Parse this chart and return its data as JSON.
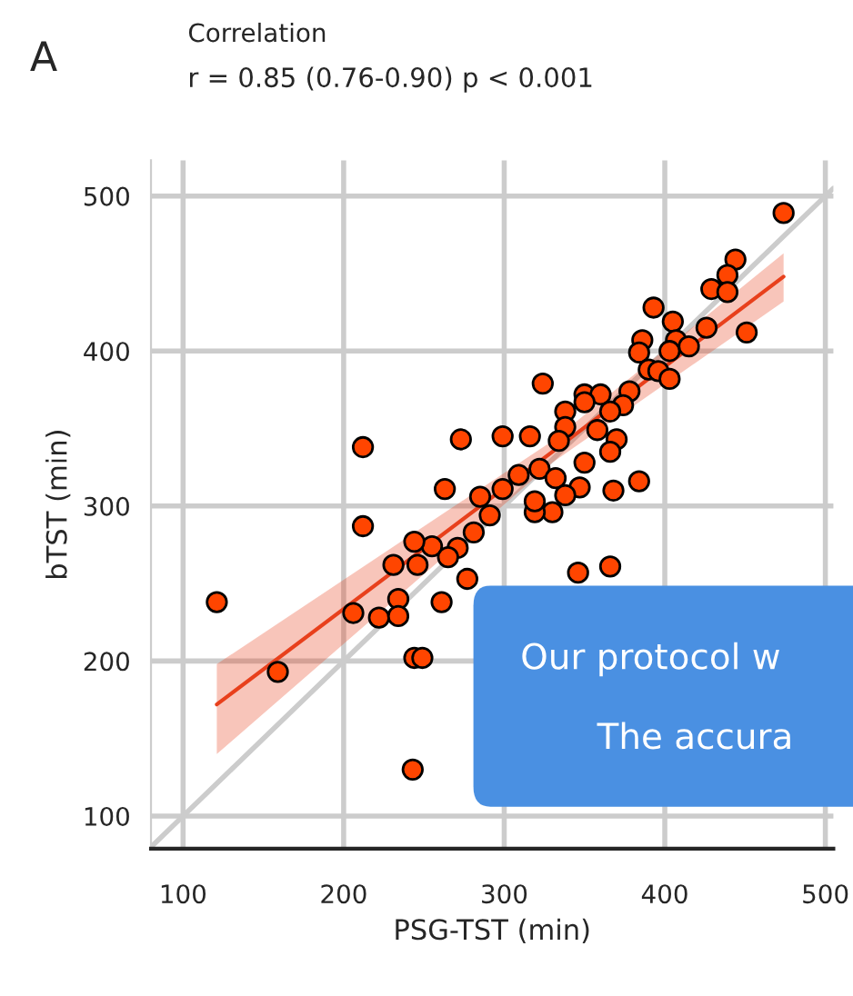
{
  "chart_data": {
    "type": "scatter",
    "title": "Correlation",
    "subtitle": "r = 0.85 (0.76-0.90) p < 0.001",
    "xlabel": "PSG-TST (min)",
    "ylabel": "bTST (min)",
    "annotations": [
      "A",
      "Our protocol w",
      "The accura"
    ],
    "xlim": [
      80,
      505
    ],
    "ylim": [
      79,
      523
    ],
    "xticks": [
      100,
      200,
      300,
      400,
      500
    ],
    "yticks": [
      100,
      200,
      300,
      400,
      500
    ],
    "grid": true,
    "series": [
      {
        "type": "line",
        "color": "#cccccc",
        "x": [
          80,
          505
        ],
        "values": [
          80,
          505
        ]
      },
      {
        "type": "line",
        "color": "#e8401c",
        "x": [
          121,
          330,
          474
        ],
        "values": [
          172,
          335,
          448
        ],
        "lower": [
          140,
          328,
          432
        ],
        "upper": [
          198,
          342,
          463
        ]
      },
      {
        "marker": "circle",
        "color": "#ff4500",
        "x": [
          474,
          444,
          439,
          429,
          439,
          393,
          405,
          426,
          451,
          386,
          407,
          384,
          403,
          415,
          390,
          396,
          403,
          324,
          350,
          360,
          378,
          374,
          350,
          338,
          366,
          338,
          334,
          370,
          358,
          212,
          273,
          299,
          316,
          366,
          350,
          322,
          332,
          309,
          384,
          368,
          347,
          338,
          330,
          319,
          319,
          299,
          285,
          263,
          291,
          212,
          281,
          271,
          255,
          244,
          265,
          246,
          231,
          277,
          261,
          234,
          222,
          206,
          234,
          121,
          159,
          244,
          249,
          346,
          366,
          243
        ],
        "values": [
          489,
          459,
          449,
          440,
          438,
          428,
          419,
          415,
          412,
          407,
          407,
          399,
          400,
          403,
          388,
          387,
          382,
          379,
          372,
          372,
          374,
          365,
          367,
          361,
          361,
          351,
          342,
          343,
          349,
          338,
          343,
          345,
          345,
          335,
          328,
          324,
          318,
          320,
          316,
          310,
          312,
          307,
          296,
          296,
          303,
          311,
          306,
          311,
          294,
          287,
          283,
          273,
          274,
          277,
          267,
          262,
          262,
          253,
          238,
          240,
          228,
          231,
          229,
          238,
          193,
          202,
          202,
          257,
          261,
          130
        ]
      }
    ]
  }
}
